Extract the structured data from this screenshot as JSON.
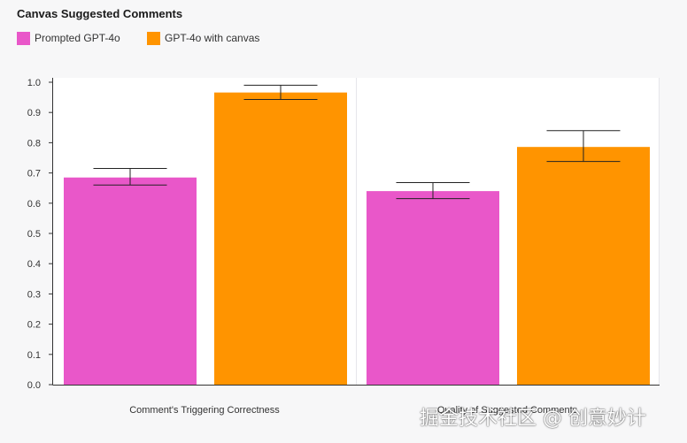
{
  "chart_data": {
    "type": "bar",
    "title": "Canvas Suggested Comments",
    "categories": [
      "Comment's Triggering Correctness",
      "Quality of Suggested Comments"
    ],
    "series": [
      {
        "name": "Prompted GPT-4o",
        "color": "#e957c9",
        "values": [
          0.685,
          0.64
        ],
        "error_low": [
          0.66,
          0.615
        ],
        "error_high": [
          0.715,
          0.668
        ]
      },
      {
        "name": "GPT-4o with canvas",
        "color": "#ff9400",
        "values": [
          0.966,
          0.786
        ],
        "error_low": [
          0.943,
          0.738
        ],
        "error_high": [
          0.99,
          0.84
        ]
      }
    ],
    "ylim": [
      0,
      1.0
    ],
    "yticks": [
      "0.0",
      "0.1",
      "0.2",
      "0.3",
      "0.4",
      "0.5",
      "0.6",
      "0.7",
      "0.8",
      "0.9",
      "1.0"
    ],
    "grid": false,
    "legend": "top-left",
    "xlabel": "",
    "ylabel": ""
  },
  "watermark": "掘金技术社区 @ 创意妙计"
}
